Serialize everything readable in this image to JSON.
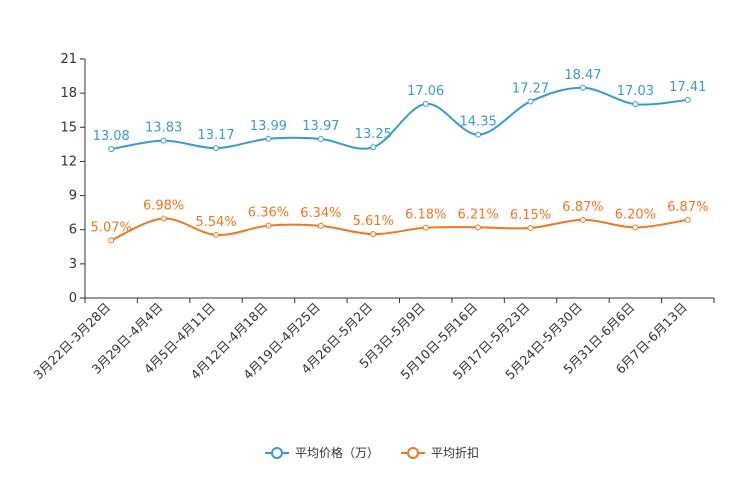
{
  "chart_data": {
    "type": "line",
    "title": "",
    "xlabel": "",
    "ylabel": "",
    "ylim": [
      0,
      21
    ],
    "yticks": [
      0,
      3,
      6,
      9,
      12,
      15,
      18,
      21
    ],
    "grid": false,
    "legend_position": "bottom",
    "categories": [
      "3月22日-3月28日",
      "3月29日-4月4日",
      "4月5日-4月11日",
      "4月12日-4月18日",
      "4月19日-4月25日",
      "4月26日-5月2日",
      "5月3日-5月9日",
      "5月10日-5月16日",
      "5月17日-5月23日",
      "5月24日-5月30日",
      "5月31日-6月6日",
      "6月7日-6月13日"
    ],
    "series": [
      {
        "name": "平均价格（万）",
        "color": "#3A9AD0",
        "values": [
          13.08,
          13.83,
          13.17,
          13.99,
          13.97,
          13.25,
          17.06,
          14.35,
          17.27,
          18.47,
          17.03,
          17.41
        ],
        "labels": [
          "13.08",
          "13.83",
          "13.17",
          "13.99",
          "13.97",
          "13.25",
          "17.06",
          "14.35",
          "17.27",
          "18.47",
          "17.03",
          "17.41"
        ]
      },
      {
        "name": "平均折扣",
        "color": "#EE7722",
        "values": [
          5.07,
          6.98,
          5.54,
          6.36,
          6.34,
          5.61,
          6.18,
          6.21,
          6.15,
          6.87,
          6.2,
          6.87
        ],
        "labels": [
          "5.07%",
          "6.98%",
          "5.54%",
          "6.36%",
          "6.34%",
          "5.61%",
          "6.18%",
          "6.21%",
          "6.15%",
          "6.87%",
          "6.20%",
          "6.87%"
        ]
      }
    ]
  }
}
